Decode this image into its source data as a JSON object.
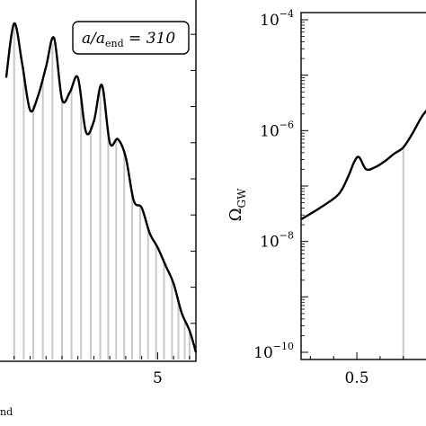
{
  "chart_data": [
    {
      "type": "line",
      "annotation": {
        "base": "a/a",
        "sub": "end",
        "rel": " = ",
        "value": "310"
      },
      "xlabel_fragment": "nd",
      "x_ticks": [
        5
      ],
      "x_tick_labels": [
        "5"
      ],
      "xlim": [
        0,
        6.2
      ],
      "ylim": [
        0,
        1
      ],
      "grid": false,
      "vertical_lines_x": [
        0.5,
        0.8,
        1.1,
        1.4,
        1.7,
        2.0,
        2.3,
        2.6,
        2.9,
        3.2,
        3.45,
        3.7,
        3.95,
        4.2,
        4.45,
        4.7,
        4.95,
        5.2,
        5.45,
        5.65,
        5.85,
        6.0
      ],
      "series": [
        {
          "x": [
            0.25,
            0.5,
            0.75,
            1.0,
            1.25,
            1.5,
            1.75,
            2.0,
            2.25,
            2.5,
            2.75,
            3.0,
            3.25,
            3.5,
            3.75,
            4.0,
            4.25,
            4.5,
            4.75,
            5.0,
            5.25,
            5.5,
            5.75,
            6.0,
            6.2
          ],
          "y": [
            0.78,
            0.93,
            0.82,
            0.69,
            0.73,
            0.81,
            0.89,
            0.72,
            0.74,
            0.78,
            0.63,
            0.66,
            0.76,
            0.6,
            0.61,
            0.56,
            0.44,
            0.42,
            0.35,
            0.31,
            0.26,
            0.21,
            0.13,
            0.08,
            0.02
          ]
        }
      ]
    },
    {
      "type": "line",
      "y_scale": "log",
      "ylabel": {
        "base": "Ω",
        "sub": "GW"
      },
      "x_ticks": [
        0.5
      ],
      "x_tick_labels": [
        "0.5"
      ],
      "xlim": [
        0.38,
        0.67
      ],
      "ylim": [
        1e-10,
        0.0001
      ],
      "y_tick_labels": [
        {
          "base": "10",
          "exp": "−4"
        },
        {
          "base": "10",
          "exp": "−6"
        },
        {
          "base": "10",
          "exp": "−8"
        },
        {
          "base": "10",
          "exp": "−10"
        }
      ],
      "y_tick_values": [
        0.0001,
        1e-06,
        1e-08,
        1e-10
      ],
      "grid": false,
      "vertical_lines_x": [
        0.6
      ],
      "series": [
        {
          "x": [
            0.38,
            0.42,
            0.46,
            0.48,
            0.495,
            0.505,
            0.52,
            0.54,
            0.56,
            0.58,
            0.6,
            0.62,
            0.64,
            0.66,
            0.67
          ],
          "y": [
            2.5e-08,
            4e-08,
            7e-08,
            1.4e-07,
            2.8e-07,
            3.3e-07,
            2e-07,
            2.2e-07,
            2.8e-07,
            3.8e-07,
            5e-07,
            9e-07,
            1.8e-06,
            3e-06,
            5e-06
          ]
        }
      ]
    }
  ]
}
